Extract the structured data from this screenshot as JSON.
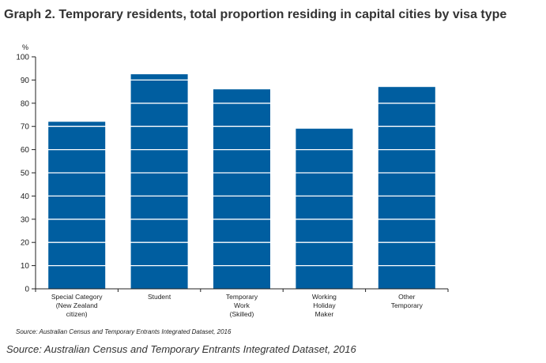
{
  "page": {
    "title": "Graph 2. Temporary residents, total proportion residing in capital cities by visa type",
    "source_caption": "Source: Australian Census and Temporary Entrants Integrated Dataset, 2016"
  },
  "chart_data": {
    "type": "bar",
    "title": "Graph 2. Temporary residents, total proportion residing in capital cities by visa type",
    "ylabel": "%",
    "xlabel": "",
    "ylim": [
      0,
      100
    ],
    "yticks": [
      0,
      10,
      20,
      30,
      40,
      50,
      60,
      70,
      80,
      90,
      100
    ],
    "grid": true,
    "categories": [
      "Special Category (New Zealand citizen)",
      "Student",
      "Temporary Work (Skilled)",
      "Working Holiday Maker",
      "Other Temporary"
    ],
    "category_label_lines": [
      [
        "Special Category",
        "(New Zealand",
        "citizen)"
      ],
      [
        "Student"
      ],
      [
        "Temporary",
        "Work",
        "(Skilled)"
      ],
      [
        "Working",
        "Holiday",
        "Maker"
      ],
      [
        "Other",
        "Temporary"
      ]
    ],
    "values": [
      72,
      92.5,
      86,
      69,
      87
    ],
    "bar_color": "#005ea0",
    "source_note": "Source: Australian Census and Temporary Entrants Integrated Dataset, 2016"
  }
}
